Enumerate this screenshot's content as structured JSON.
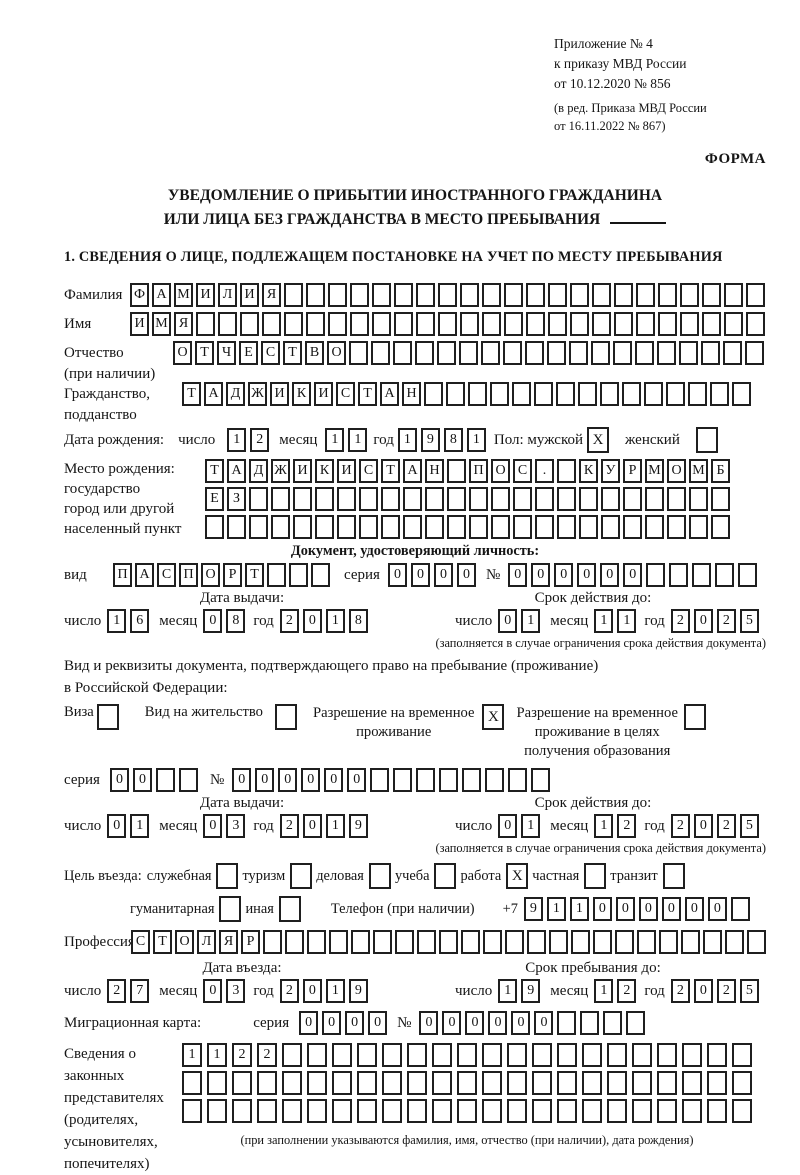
{
  "colors": {
    "ink": "#151515",
    "paper": "#ffffff"
  },
  "header": {
    "appendix": [
      "Приложение № 4",
      "к приказу МВД России",
      "от 10.12.2020 № 856"
    ],
    "edition": [
      "(в ред. Приказа МВД России",
      "от 16.11.2022 № 867)"
    ],
    "form_label": "ФОРМА"
  },
  "title": {
    "line1": "УВЕДОМЛЕНИЕ О ПРИБЫТИИ ИНОСТРАННОГО ГРАЖДАНИНА",
    "line2": "ИЛИ ЛИЦА БЕЗ ГРАЖДАНСТВА В МЕСТО ПРЕБЫВАНИЯ"
  },
  "section1_heading": "1. СВЕДЕНИЯ О ЛИЦЕ, ПОДЛЕЖАЩЕМ ПОСТАНОВКЕ НА УЧЕТ ПО МЕСТУ ПРЕБЫВАНИЯ",
  "fields": {
    "surname": {
      "label": "Фамилия",
      "row": {
        "value": "ФАМИЛИЯ",
        "cells": 29
      }
    },
    "name": {
      "label": "Имя",
      "row": {
        "value": "ИМЯ",
        "cells": 29
      }
    },
    "patronymic": {
      "label": "Отчество",
      "label2": "(при наличии)",
      "row": {
        "value": "ОТЧЕСТВО",
        "cells": 27
      }
    },
    "citizenship": {
      "label": "Гражданство,",
      "label2": "подданство",
      "row": {
        "value": "ТАДЖИКИСТАН",
        "cells": 26
      }
    },
    "birth_date": {
      "label": "Дата рождения:",
      "day_label": "число",
      "day": {
        "value": "12",
        "cells": 2
      },
      "month_label": "месяц",
      "month": {
        "value": "11",
        "cells": 2
      },
      "year_label": "год",
      "year": {
        "value": "1981",
        "cells": 4
      },
      "sex_label": "Пол: мужской",
      "male": {
        "value": "X",
        "cells": 1
      },
      "female_label": "женский",
      "female": {
        "value": "",
        "cells": 1
      }
    },
    "birth_place": {
      "labels": [
        "Место рождения:",
        "государство",
        "город или другой",
        "населенный пункт"
      ],
      "row1": {
        "value": "ТАДЖИКИСТАН ПОС. КУРМОМБ",
        "cells": 24
      },
      "row2": {
        "value": "ЕЗ",
        "cells": 24
      },
      "row3": {
        "value": "",
        "cells": 24
      }
    }
  },
  "identity_doc": {
    "heading": "Документ, удостоверяющий личность:",
    "kind_label": "вид",
    "kind": {
      "value": "ПАСПОРТ",
      "cells": 10
    },
    "series_label": "серия",
    "series": {
      "value": "0000",
      "cells": 4
    },
    "number_label": "№",
    "number": {
      "value": "000000",
      "cells": 11
    },
    "issue_head": "Дата выдачи:",
    "valid_head": "Срок действия до:",
    "issue": {
      "day_label": "число",
      "day": {
        "value": "16",
        "cells": 2
      },
      "month_label": "месяц",
      "month": {
        "value": "08",
        "cells": 2
      },
      "year_label": "год",
      "year": {
        "value": "2018",
        "cells": 4
      }
    },
    "valid": {
      "day_label": "число",
      "day": {
        "value": "01",
        "cells": 2
      },
      "month_label": "месяц",
      "month": {
        "value": "11",
        "cells": 2
      },
      "year_label": "год",
      "year": {
        "value": "2025",
        "cells": 4
      }
    },
    "note": "(заполняется в случае ограничения срока действия документа)"
  },
  "residence_doc": {
    "intro1": "Вид и реквизиты документа, подтверждающего право на пребывание (проживание)",
    "intro2": "в Российской Федерации:",
    "visa_label": "Виза",
    "visa": {
      "value": "",
      "cells": 1
    },
    "permit_label": "Вид на жительство",
    "permit": {
      "value": "",
      "cells": 1
    },
    "trp_lines": [
      "Разрешение на временное",
      "проживание"
    ],
    "trp": {
      "value": "X",
      "cells": 1
    },
    "trp_edu_lines": [
      "Разрешение на временное",
      "проживание в целях",
      "получения образования"
    ],
    "trp_edu": {
      "value": "",
      "cells": 1
    },
    "series_label": "серия",
    "series": {
      "value": "00",
      "cells": 4
    },
    "number_label": "№",
    "number": {
      "value": "000000",
      "cells": 14
    },
    "issue_head": "Дата выдачи:",
    "valid_head": "Срок действия до:",
    "issue": {
      "day_label": "число",
      "day": {
        "value": "01",
        "cells": 2
      },
      "month_label": "месяц",
      "month": {
        "value": "03",
        "cells": 2
      },
      "year_label": "год",
      "year": {
        "value": "2019",
        "cells": 4
      }
    },
    "valid": {
      "day_label": "число",
      "day": {
        "value": "01",
        "cells": 2
      },
      "month_label": "месяц",
      "month": {
        "value": "12",
        "cells": 2
      },
      "year_label": "год",
      "year": {
        "value": "2025",
        "cells": 4
      }
    },
    "note": "(заполняется в случае ограничения срока действия документа)"
  },
  "entry": {
    "purpose_label": "Цель въезда:",
    "options_row1": [
      {
        "label": "служебная",
        "box": {
          "value": "",
          "cells": 1
        }
      },
      {
        "label": "туризм",
        "box": {
          "value": "",
          "cells": 1
        }
      },
      {
        "label": "деловая",
        "box": {
          "value": "",
          "cells": 1
        }
      },
      {
        "label": "учеба",
        "box": {
          "value": "",
          "cells": 1
        }
      },
      {
        "label": "работа",
        "box": {
          "value": "X",
          "cells": 1
        }
      },
      {
        "label": "частная",
        "box": {
          "value": "",
          "cells": 1
        }
      },
      {
        "label": "транзит",
        "box": {
          "value": "",
          "cells": 1
        }
      }
    ],
    "options_row2": [
      {
        "label": "гуманитарная",
        "box": {
          "value": "",
          "cells": 1
        }
      },
      {
        "label": "иная",
        "box": {
          "value": "",
          "cells": 1
        }
      }
    ],
    "phone_label": "Телефон (при наличии)",
    "phone_prefix": "+7",
    "phone": {
      "value": "911000000",
      "cells": 10
    },
    "profession_label": "Профессия",
    "profession": {
      "value": "СТОЛЯР",
      "cells": 29
    },
    "entry_head": "Дата въезда:",
    "stay_head": "Срок пребывания до:",
    "entry_date": {
      "day_label": "число",
      "day": {
        "value": "27",
        "cells": 2
      },
      "month_label": "месяц",
      "month": {
        "value": "03",
        "cells": 2
      },
      "year_label": "год",
      "year": {
        "value": "2019",
        "cells": 4
      }
    },
    "stay_until": {
      "day_label": "число",
      "day": {
        "value": "19",
        "cells": 2
      },
      "month_label": "месяц",
      "month": {
        "value": "12",
        "cells": 2
      },
      "year_label": "год",
      "year": {
        "value": "2025",
        "cells": 4
      }
    }
  },
  "migration_card": {
    "label": "Миграционная карта:",
    "series_label": "серия",
    "series": {
      "value": "0000",
      "cells": 4
    },
    "number_label": "№",
    "number": {
      "value": "000000",
      "cells": 10
    }
  },
  "representatives": {
    "label_lines": [
      "Сведения о",
      "законных",
      "представителях",
      "(родителях,",
      "усыновителях,",
      "попечителях)"
    ],
    "row1": {
      "value": "1122",
      "cells": 23
    },
    "row2": {
      "value": "",
      "cells": 23
    },
    "row3": {
      "value": "",
      "cells": 23
    },
    "note": "(при заполнении указываются фамилия, имя, отчество (при наличии), дата рождения)"
  }
}
